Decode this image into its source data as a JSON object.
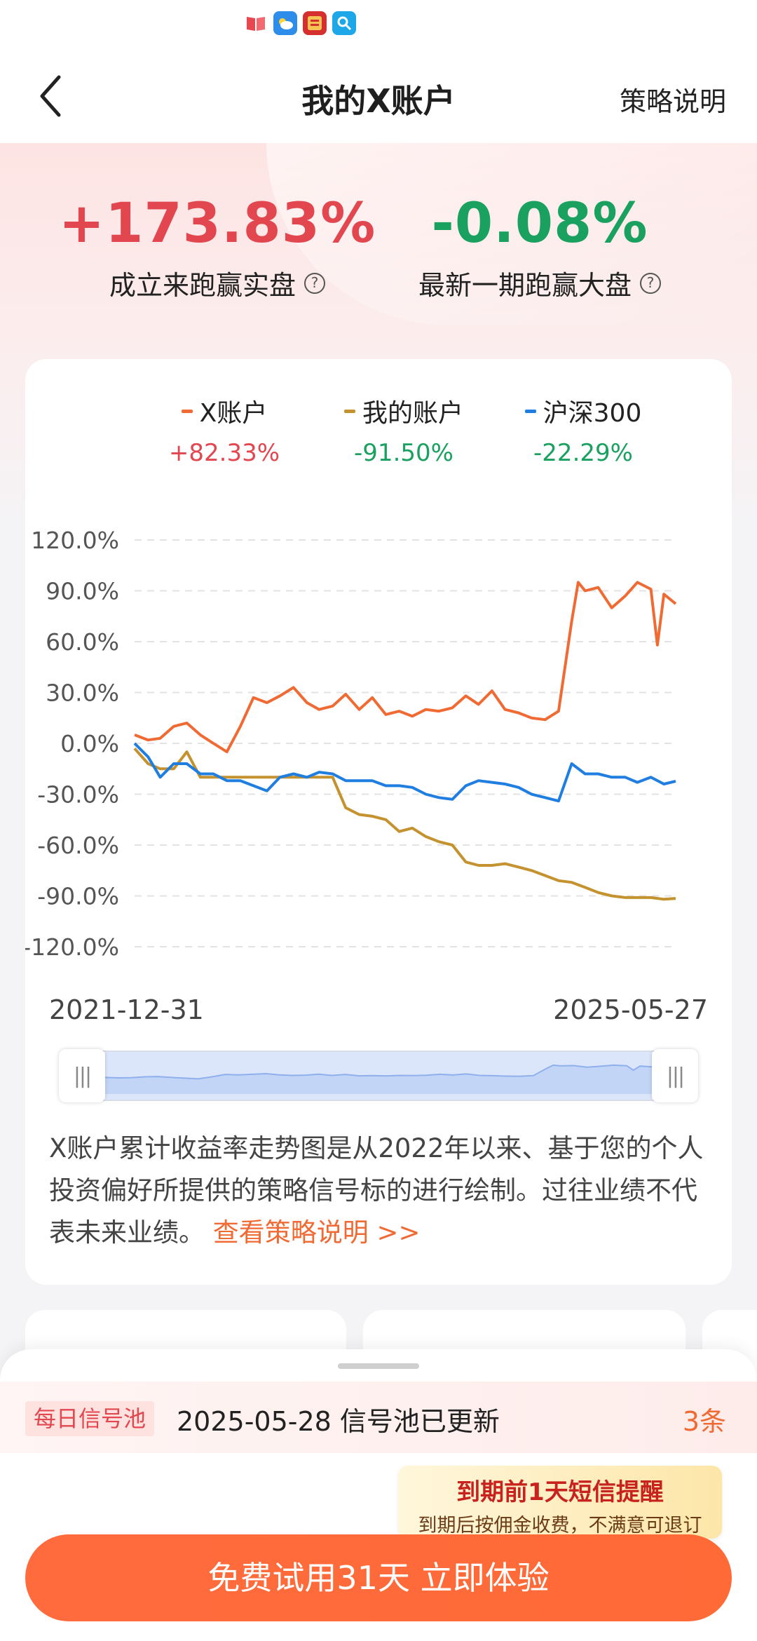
{
  "status_bar": {
    "icons": [
      "book-icon",
      "weather-icon",
      "news-app-icon",
      "search-app-icon"
    ]
  },
  "nav": {
    "title": "我的X账户",
    "right_link": "策略说明"
  },
  "summary": {
    "left_value": "+173.83%",
    "left_label": "成立来跑赢实盘",
    "right_value": "-0.08%",
    "right_label": "最新一期跑赢大盘"
  },
  "colors": {
    "x_account": "#f06a34",
    "my_account": "#c4922e",
    "csi300": "#1f7ee0",
    "positive": "#e2474f",
    "negative": "#1aa15f"
  },
  "chart_data": {
    "type": "line",
    "series": [
      {
        "name": "X账户",
        "legend_value": "+82.33%",
        "x": [
          "2021-12-31",
          "2022-01-31",
          "2022-02-28",
          "2022-03-31",
          "2022-04-30",
          "2022-05-31",
          "2022-06-30",
          "2022-07-31",
          "2022-08-31",
          "2022-09-30",
          "2022-10-31",
          "2022-11-30",
          "2022-12-31",
          "2023-01-31",
          "2023-02-28",
          "2023-03-31",
          "2023-04-30",
          "2023-05-31",
          "2023-06-30",
          "2023-07-31",
          "2023-08-31",
          "2023-09-30",
          "2023-10-31",
          "2023-11-30",
          "2023-12-31",
          "2024-01-31",
          "2024-02-29",
          "2024-03-31",
          "2024-04-30",
          "2024-05-31",
          "2024-06-30",
          "2024-07-31",
          "2024-08-31",
          "2024-09-30",
          "2024-10-15",
          "2024-10-31",
          "2024-11-30",
          "2024-12-31",
          "2025-01-31",
          "2025-02-28",
          "2025-03-31",
          "2025-04-15",
          "2025-04-30",
          "2025-05-27"
        ],
        "values": [
          5,
          2,
          3,
          10,
          12,
          5,
          0,
          -5,
          10,
          27,
          24,
          28,
          33,
          24,
          20,
          22,
          29,
          20,
          27,
          17,
          19,
          16,
          20,
          19,
          21,
          28,
          23,
          31,
          20,
          18,
          15,
          14,
          19,
          72,
          95,
          90,
          92,
          80,
          87,
          95,
          91,
          58,
          88,
          82.33
        ]
      },
      {
        "name": "我的账户",
        "legend_value": "-91.50%",
        "x": [
          "2021-12-31",
          "2022-01-31",
          "2022-02-28",
          "2022-03-31",
          "2022-04-30",
          "2022-05-31",
          "2022-06-30",
          "2022-07-31",
          "2022-08-31",
          "2022-09-30",
          "2022-10-31",
          "2022-11-30",
          "2022-12-31",
          "2023-01-31",
          "2023-02-28",
          "2023-03-31",
          "2023-04-30",
          "2023-05-31",
          "2023-06-30",
          "2023-07-31",
          "2023-08-31",
          "2023-09-30",
          "2023-10-31",
          "2023-11-30",
          "2023-12-31",
          "2024-01-31",
          "2024-02-29",
          "2024-03-31",
          "2024-04-30",
          "2024-05-31",
          "2024-06-30",
          "2024-07-31",
          "2024-08-31",
          "2024-09-30",
          "2024-10-31",
          "2024-11-30",
          "2024-12-31",
          "2025-01-31",
          "2025-02-28",
          "2025-03-31",
          "2025-04-30",
          "2025-05-27"
        ],
        "values": [
          -3,
          -12,
          -15,
          -15,
          -5,
          -20,
          -20,
          -20,
          -20,
          -20,
          -20,
          -20,
          -20,
          -20,
          -20,
          -20,
          -38,
          -42,
          -43,
          -45,
          -52,
          -50,
          -55,
          -58,
          -60,
          -70,
          -72,
          -72,
          -71,
          -73,
          -75,
          -78,
          -81,
          -82,
          -85,
          -88,
          -90,
          -91,
          -91,
          -91,
          -92,
          -91.5
        ]
      },
      {
        "name": "沪深300",
        "legend_value": "-22.29%",
        "x": [
          "2021-12-31",
          "2022-01-31",
          "2022-02-28",
          "2022-03-31",
          "2022-04-30",
          "2022-05-31",
          "2022-06-30",
          "2022-07-31",
          "2022-08-31",
          "2022-09-30",
          "2022-10-31",
          "2022-11-30",
          "2022-12-31",
          "2023-01-31",
          "2023-02-28",
          "2023-03-31",
          "2023-04-30",
          "2023-05-31",
          "2023-06-30",
          "2023-07-31",
          "2023-08-31",
          "2023-09-30",
          "2023-10-31",
          "2023-11-30",
          "2023-12-31",
          "2024-01-31",
          "2024-02-29",
          "2024-03-31",
          "2024-04-30",
          "2024-05-31",
          "2024-06-30",
          "2024-07-31",
          "2024-08-31",
          "2024-09-30",
          "2024-10-31",
          "2024-11-30",
          "2024-12-31",
          "2025-01-31",
          "2025-02-28",
          "2025-03-31",
          "2025-04-30",
          "2025-05-27"
        ],
        "values": [
          0,
          -8,
          -20,
          -12,
          -12,
          -18,
          -18,
          -22,
          -22,
          -25,
          -28,
          -20,
          -18,
          -20,
          -17,
          -18,
          -22,
          -22,
          -22,
          -25,
          -25,
          -26,
          -30,
          -32,
          -33,
          -25,
          -22,
          -23,
          -24,
          -26,
          -30,
          -32,
          -34,
          -12,
          -18,
          -18,
          -20,
          -20,
          -23,
          -20,
          -24,
          -22.29
        ]
      }
    ],
    "y_ticks": [
      "120.0%",
      "90.0%",
      "60.0%",
      "30.0%",
      "0.0%",
      "-30.0%",
      "-60.0%",
      "-90.0%",
      "-120.0%"
    ],
    "ylim": [
      -120,
      120
    ],
    "x_range_labels": [
      "2021-12-31",
      "2025-05-27"
    ],
    "grid": "horizontal-dashed",
    "legend_position": "top"
  },
  "range_slider": {
    "start_fraction": 0,
    "end_fraction": 1
  },
  "description": {
    "text": "X账户累计收益率走势图是从2022年以来、基于您的个人投资偏好所提供的策略信号标的进行绘制。过往业绩不代表未来业绩。",
    "link": "查看策略说明 >>"
  },
  "bottom_sheet": {
    "badge": "每日信号池",
    "update_text": "2025-05-28 信号池已更新",
    "count": "3条",
    "tooltip_title": "到期前1天短信提醒",
    "tooltip_sub": "到期后按佣金收费，不满意可退订",
    "cta": "免费试用31天 立即体验"
  }
}
